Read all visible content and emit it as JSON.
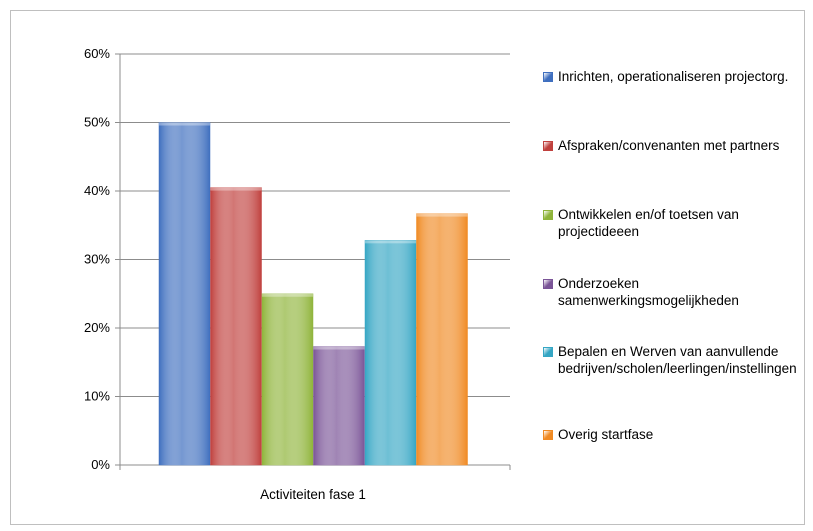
{
  "chart_data": {
    "type": "bar",
    "categories": [
      "Activiteiten fase 1"
    ],
    "xlabel": "Activiteiten fase 1",
    "ylabel": "",
    "title": "",
    "ylim": [
      0,
      60
    ],
    "yticks": [
      "0%",
      "10%",
      "20%",
      "30%",
      "40%",
      "50%",
      "60%"
    ],
    "grid": true,
    "legend_position": "right",
    "series": [
      {
        "name": "Inrichten, operationaliseren projectorg.",
        "values": [
          50
        ],
        "color": "#3f6fbf"
      },
      {
        "name": "Afspraken/convenanten met partners",
        "values": [
          40.5
        ],
        "color": "#c0403d"
      },
      {
        "name": "Ontwikkelen en/of toetsen van projectideeen",
        "values": [
          25
        ],
        "color": "#8fb43a"
      },
      {
        "name": "Onderzoeken samenwerkingsmogelijkheden",
        "values": [
          17.3
        ],
        "color": "#7a5497"
      },
      {
        "name": "Bepalen en Werven van aanvullende bedrijven/scholen/leerlingen/instellingen",
        "values": [
          32.8
        ],
        "color": "#35a6c4"
      },
      {
        "name": "Overig startfase",
        "values": [
          36.7
        ],
        "color": "#f08a23"
      }
    ]
  }
}
